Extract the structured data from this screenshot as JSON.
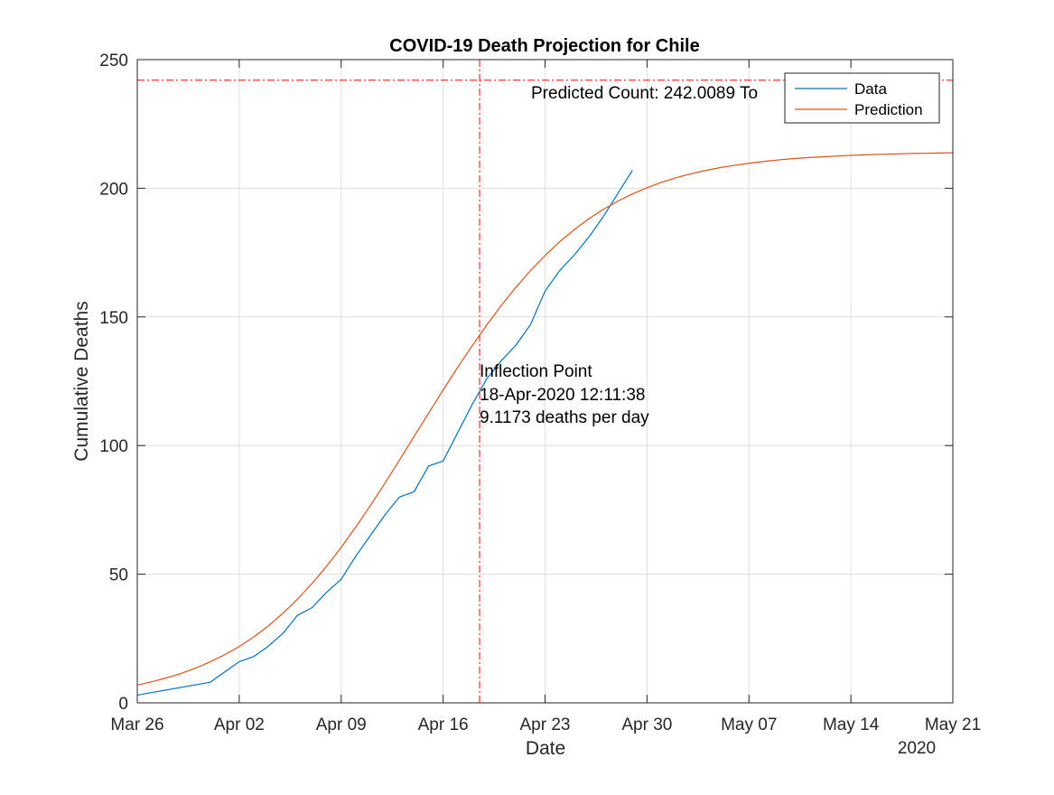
{
  "chart_data": {
    "type": "line",
    "title": "COVID-19 Death Projection for Chile",
    "xlabel": "Date",
    "ylabel": "Cumulative Deaths",
    "x_secondary_label": "2020",
    "x_range": [
      "2020-03-26",
      "2020-05-21"
    ],
    "ylim": [
      0,
      250
    ],
    "x_ticks": [
      {
        "date": "2020-03-26",
        "label": "Mar 26"
      },
      {
        "date": "2020-04-02",
        "label": "Apr 02"
      },
      {
        "date": "2020-04-09",
        "label": "Apr 09"
      },
      {
        "date": "2020-04-16",
        "label": "Apr 16"
      },
      {
        "date": "2020-04-23",
        "label": "Apr 23"
      },
      {
        "date": "2020-04-30",
        "label": "Apr 30"
      },
      {
        "date": "2020-05-07",
        "label": "May 07"
      },
      {
        "date": "2020-05-14",
        "label": "May 14"
      },
      {
        "date": "2020-05-21",
        "label": "May 21"
      }
    ],
    "y_ticks": [
      0,
      50,
      100,
      150,
      200,
      250
    ],
    "grid": true,
    "legend_position": "top-right",
    "colors": {
      "data": "#0072BD",
      "prediction": "#D95319",
      "reference": "#FF0000",
      "axes": "#262626",
      "grid": "#DFDFDF"
    },
    "series": [
      {
        "name": "Data",
        "x": [
          "2020-03-26",
          "2020-03-31",
          "2020-04-02",
          "2020-04-03",
          "2020-04-04",
          "2020-04-05",
          "2020-04-06",
          "2020-04-07",
          "2020-04-08",
          "2020-04-09",
          "2020-04-10",
          "2020-04-11",
          "2020-04-12",
          "2020-04-13",
          "2020-04-14",
          "2020-04-15",
          "2020-04-16",
          "2020-04-17",
          "2020-04-18",
          "2020-04-19",
          "2020-04-20",
          "2020-04-21",
          "2020-04-22",
          "2020-04-23",
          "2020-04-24",
          "2020-04-25",
          "2020-04-26",
          "2020-04-27",
          "2020-04-28",
          "2020-04-29"
        ],
        "y": [
          3,
          8,
          16,
          18,
          22,
          27,
          34,
          37,
          43,
          48,
          57,
          65,
          73,
          80,
          82,
          92,
          94,
          105,
          116,
          126,
          133,
          139,
          147,
          160,
          168,
          174,
          181,
          189,
          198,
          207
        ]
      },
      {
        "name": "Prediction",
        "x": [
          "2020-03-26",
          "2020-03-27",
          "2020-03-28",
          "2020-03-29",
          "2020-03-30",
          "2020-03-31",
          "2020-04-01",
          "2020-04-02",
          "2020-04-03",
          "2020-04-04",
          "2020-04-05",
          "2020-04-06",
          "2020-04-07",
          "2020-04-08",
          "2020-04-09",
          "2020-04-10",
          "2020-04-11",
          "2020-04-12",
          "2020-04-13",
          "2020-04-14",
          "2020-04-15",
          "2020-04-16",
          "2020-04-17",
          "2020-04-18",
          "2020-04-19",
          "2020-04-20",
          "2020-04-21",
          "2020-04-22",
          "2020-04-23",
          "2020-04-24",
          "2020-04-25",
          "2020-04-26",
          "2020-04-27",
          "2020-04-28",
          "2020-04-29",
          "2020-04-30",
          "2020-05-01",
          "2020-05-02",
          "2020-05-03",
          "2020-05-04",
          "2020-05-05",
          "2020-05-06",
          "2020-05-07",
          "2020-05-08",
          "2020-05-09",
          "2020-05-10",
          "2020-05-11",
          "2020-05-12",
          "2020-05-13",
          "2020-05-14",
          "2020-05-15",
          "2020-05-16",
          "2020-05-17",
          "2020-05-18",
          "2020-05-19",
          "2020-05-20",
          "2020-05-21"
        ],
        "y": [
          6.9,
          8.2,
          9.7,
          11.4,
          13.5,
          15.9,
          18.7,
          21.9,
          25.6,
          29.9,
          34.8,
          40.3,
          46.4,
          53.1,
          60.4,
          68.3,
          76.6,
          85.3,
          94.3,
          103.5,
          112.5,
          121.6,
          130.4,
          138.8,
          146.9,
          154.5,
          161.5,
          168.0,
          173.9,
          179.2,
          183.9,
          188.1,
          191.8,
          195.0,
          197.8,
          200.2,
          202.3,
          204.1,
          205.6,
          206.9,
          208.0,
          208.9,
          209.7,
          210.4,
          211.0,
          211.5,
          211.9,
          212.2,
          212.5,
          212.8,
          213.0,
          213.2,
          213.3,
          213.5,
          213.6,
          213.7,
          213.8
        ]
      }
    ],
    "reference_lines": [
      {
        "orientation": "horizontal",
        "y": 242.0089
      },
      {
        "orientation": "vertical",
        "x": "2020-04-18T12:11:38"
      }
    ],
    "annotations": {
      "predicted_count": "Predicted Count: 242.0089 To",
      "inflection_lines": [
        "Inflection Point",
        "18-Apr-2020 12:11:38",
        "9.1173 deaths per day"
      ]
    }
  }
}
